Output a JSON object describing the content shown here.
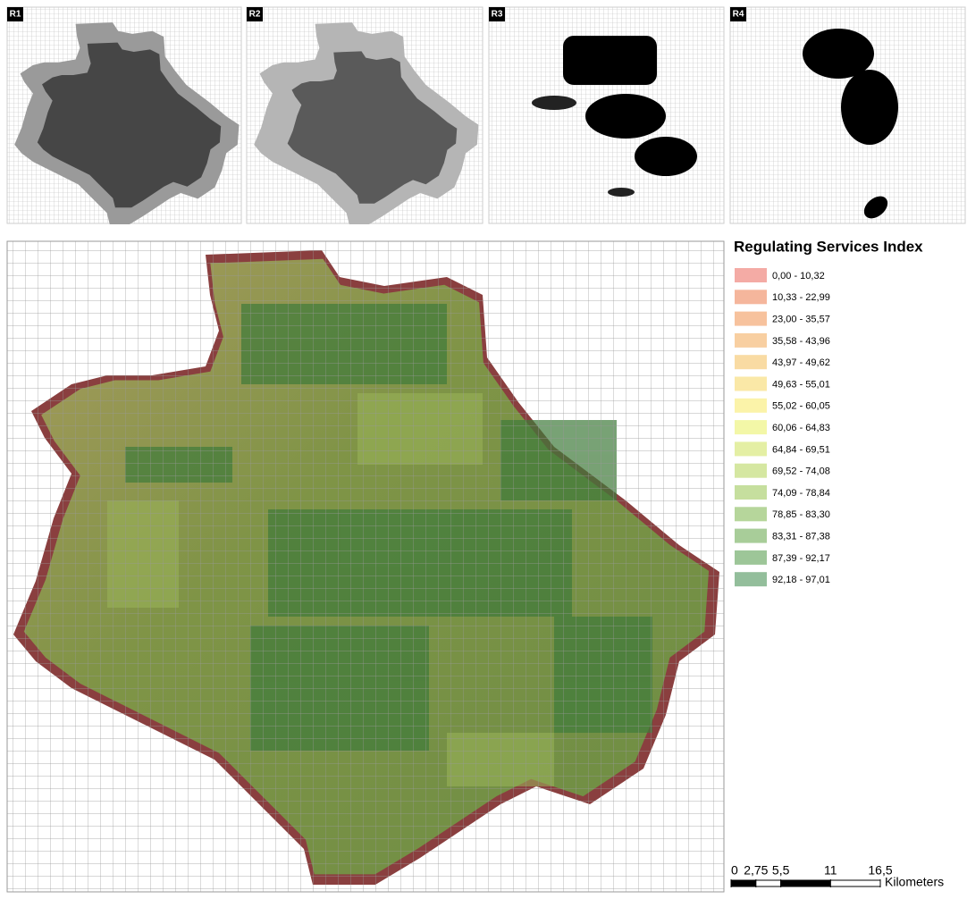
{
  "panels": [
    {
      "label": "R1"
    },
    {
      "label": "R2"
    },
    {
      "label": "R3"
    },
    {
      "label": "R4"
    }
  ],
  "legend": {
    "title": "Regulating Services Index",
    "items": [
      {
        "label": "0,00 - 10,32",
        "color": "#f4aba5"
      },
      {
        "label": "10,33 - 22,99",
        "color": "#f5b69c"
      },
      {
        "label": "23,00 - 35,57",
        "color": "#f7c29d"
      },
      {
        "label": "35,58 - 43,96",
        "color": "#f8cfa1"
      },
      {
        "label": "43,97 - 49,62",
        "color": "#f9dba3"
      },
      {
        "label": "49,63 - 55,01",
        "color": "#fae8a7"
      },
      {
        "label": "55,02 - 60,05",
        "color": "#fbf3a9"
      },
      {
        "label": "60,06 - 64,83",
        "color": "#f3f7a7"
      },
      {
        "label": "64,84 - 69,51",
        "color": "#e4efa4"
      },
      {
        "label": "69,52 - 74,08",
        "color": "#d5e7a1"
      },
      {
        "label": "74,09 - 78,84",
        "color": "#c6df9e"
      },
      {
        "label": "78,85 - 83,30",
        "color": "#b6d69b"
      },
      {
        "label": "83,31 - 87,38",
        "color": "#a8cd99"
      },
      {
        "label": "87,39 - 92,17",
        "color": "#9dc698"
      },
      {
        "label": "92,18 - 97,01",
        "color": "#93be9b"
      }
    ]
  },
  "scale_bar": {
    "ticks": [
      0,
      {
        "value": 2.75,
        "label": "2,75"
      },
      {
        "value": 5.5,
        "label": "5,5"
      },
      11,
      {
        "value": 16.5,
        "label": "16,5"
      }
    ],
    "unit": "Kilometers"
  }
}
